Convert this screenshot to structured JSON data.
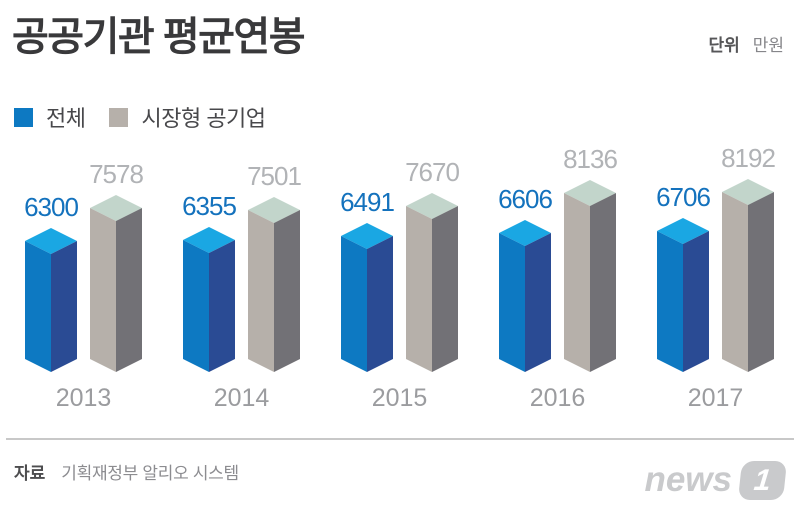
{
  "header": {
    "title": "공공기관 평균연봉",
    "unit_label": "단위",
    "unit_value": "만원"
  },
  "legend": [
    {
      "label": "전체",
      "color": "#0d79c2"
    },
    {
      "label": "시장형 공기업",
      "color": "#b6b0aa"
    }
  ],
  "chart_data": {
    "type": "bar",
    "style": "3d-columns",
    "title": "공공기관 평균연봉",
    "unit": "만원",
    "categories": [
      "2013",
      "2014",
      "2015",
      "2016",
      "2017"
    ],
    "series": [
      {
        "name": "전체",
        "values": [
          6300,
          6355,
          6491,
          6606,
          6706
        ],
        "colors": {
          "top": "#1aa7e3",
          "left": "#0d79c2",
          "right": "#2a4b94",
          "label": "#1472bd"
        }
      },
      {
        "name": "시장형 공기업",
        "values": [
          7578,
          7501,
          7670,
          8136,
          8192
        ],
        "colors": {
          "top": "#c2d5cb",
          "left": "#b6b0aa",
          "right": "#727176",
          "label": "#b1b3b6"
        }
      }
    ],
    "legend_position": "top-left",
    "grid": false,
    "value_labels": "above-bars",
    "ylim": [
      0,
      8500
    ]
  },
  "footer": {
    "source_label": "자료",
    "source_value": "기획재정부 알리오 시스템",
    "logo": {
      "text": "news",
      "badge": "1"
    }
  }
}
